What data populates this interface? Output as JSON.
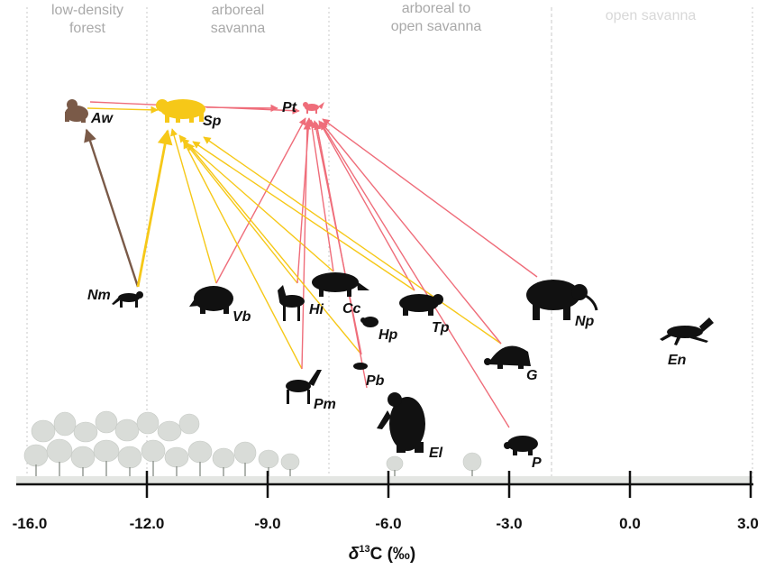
{
  "colors": {
    "carnivore_arrow": "#ef6d7a",
    "smilodon_arrow": "#f6c818",
    "sp_fill": "#f6c818",
    "pt_fill": "#ef6d7a",
    "aw_fill": "#7a5a48",
    "animal_fill": "#111111",
    "habitat_text": "#a9a9a9",
    "divider": "#c8c8c8"
  },
  "habitats": [
    {
      "name": "low-density forest",
      "lines": [
        "low-density",
        "forest"
      ]
    },
    {
      "name": "arboreal savanna",
      "lines": [
        "arboreal",
        "savanna"
      ]
    },
    {
      "name": "arboreal to open savanna",
      "lines": [
        "arboreal to",
        "open savanna"
      ]
    },
    {
      "name": "open savanna",
      "lines": [
        "open savanna"
      ]
    }
  ],
  "axis": {
    "title_prefix": "δ",
    "title_sup": "13",
    "title_suffix": "C (‰)",
    "ticks": [
      "-16.0",
      "-12.0",
      "-9.0",
      "-6.0",
      "-3.0",
      "0.0",
      "3.0"
    ]
  },
  "species": [
    {
      "code": "Aw",
      "icon": "primate-icon"
    },
    {
      "code": "Sp",
      "icon": "smilodon-icon"
    },
    {
      "code": "Pt",
      "icon": "fox-icon"
    },
    {
      "code": "Nm",
      "icon": "small-carnivore-icon"
    },
    {
      "code": "Vb",
      "icon": "anteater-icon"
    },
    {
      "code": "Hi",
      "icon": "zebra-icon"
    },
    {
      "code": "Cc",
      "icon": "tapir-icon"
    },
    {
      "code": "Hp",
      "icon": "small-mammal-icon"
    },
    {
      "code": "Tp",
      "icon": "toxodont-icon"
    },
    {
      "code": "Np",
      "icon": "gomphothere-icon"
    },
    {
      "code": "Pm",
      "icon": "camelid-icon"
    },
    {
      "code": "Pb",
      "icon": "small-mammal-icon"
    },
    {
      "code": "G",
      "icon": "glyptodont-icon"
    },
    {
      "code": "En",
      "icon": "horse-icon"
    },
    {
      "code": "El",
      "icon": "ground-sloth-icon"
    },
    {
      "code": "P",
      "icon": "pampathere-icon"
    }
  ],
  "predation_links": [
    {
      "from": "Aw",
      "to": "Sp",
      "color": "smilodon"
    },
    {
      "from": "Aw",
      "to": "Pt",
      "color": "carnivore"
    },
    {
      "from": "Sp",
      "to": "Pt",
      "color": "carnivore"
    },
    {
      "from": "Nm",
      "to": "Aw",
      "color": "primate"
    },
    {
      "from": "Nm",
      "to": "Sp",
      "color": "smilodon"
    },
    {
      "from": "Vb",
      "to": "Sp",
      "color": "smilodon"
    },
    {
      "from": "Vb",
      "to": "Pt",
      "color": "carnivore"
    },
    {
      "from": "Hi",
      "to": "Sp",
      "color": "smilodon"
    },
    {
      "from": "Hi",
      "to": "Pt",
      "color": "carnivore"
    },
    {
      "from": "Cc",
      "to": "Sp",
      "color": "smilodon"
    },
    {
      "from": "Cc",
      "to": "Pt",
      "color": "carnivore"
    },
    {
      "from": "Pm",
      "to": "Sp",
      "color": "smilodon"
    },
    {
      "from": "Pm",
      "to": "Pt",
      "color": "carnivore"
    },
    {
      "from": "Pb",
      "to": "Sp",
      "color": "smilodon"
    },
    {
      "from": "Pb",
      "to": "Pt",
      "color": "carnivore"
    },
    {
      "from": "Tp",
      "to": "Sp",
      "color": "smilodon"
    },
    {
      "from": "Tp",
      "to": "Pt",
      "color": "carnivore"
    },
    {
      "from": "G",
      "to": "Sp",
      "color": "smilodon"
    },
    {
      "from": "G",
      "to": "Pt",
      "color": "carnivore"
    },
    {
      "from": "Np",
      "to": "Pt",
      "color": "carnivore"
    },
    {
      "from": "El",
      "to": "Pt",
      "color": "carnivore"
    },
    {
      "from": "P",
      "to": "Pt",
      "color": "carnivore"
    }
  ]
}
